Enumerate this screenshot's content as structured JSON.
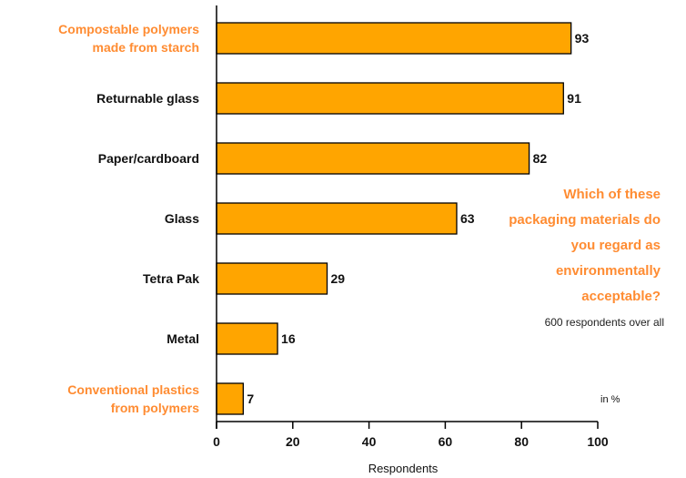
{
  "chart_data": {
    "type": "bar",
    "orientation": "horizontal",
    "categories": [
      [
        "Compostable polymers",
        "made from starch"
      ],
      [
        "Returnable glass"
      ],
      [
        "Paper/cardboard"
      ],
      [
        "Glass"
      ],
      [
        "Tetra Pak"
      ],
      [
        "Metal"
      ],
      [
        "Conventional plastics",
        "from polymers"
      ]
    ],
    "highlighted": [
      true,
      false,
      false,
      false,
      false,
      false,
      true
    ],
    "values": [
      93,
      91,
      82,
      63,
      29,
      16,
      7
    ],
    "xlabel": "Respondents",
    "unit": "in %",
    "xlim": [
      0,
      100
    ],
    "xticks": [
      0,
      20,
      40,
      60,
      80,
      100
    ],
    "grid": false,
    "bar_color": "#FFA500",
    "highlight_color": "#FF8C32",
    "question_lines": [
      "Which of these",
      "packaging materials do",
      "you regard as",
      "environmentally",
      "acceptable?"
    ],
    "note": "600 respondents over all"
  }
}
